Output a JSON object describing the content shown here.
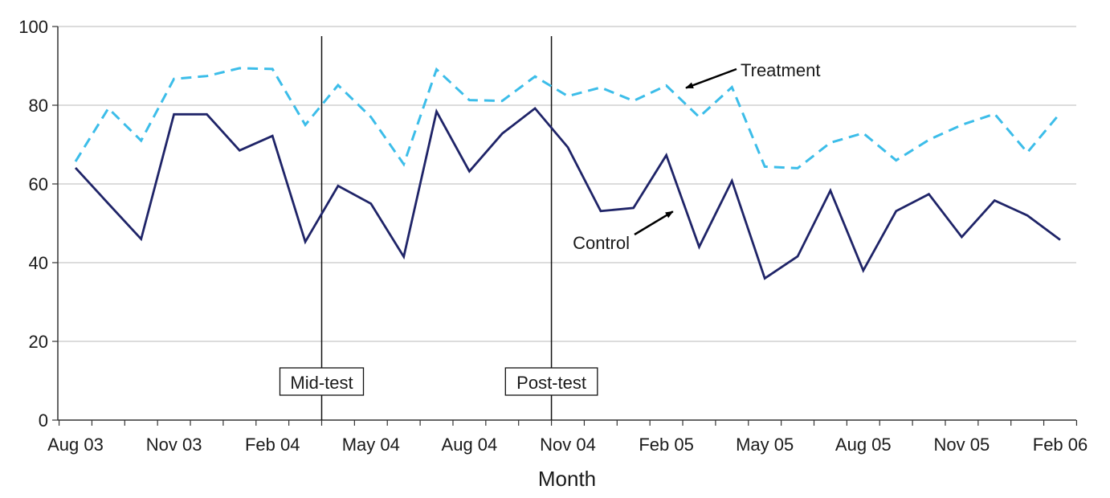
{
  "chart_data": {
    "type": "line",
    "xlabel": "Month",
    "ylabel": "",
    "ylim": [
      0,
      100
    ],
    "y_ticks": [
      0,
      20,
      40,
      60,
      80,
      100
    ],
    "grid": "horizontal",
    "x_tick_labels": [
      "Aug 03",
      "Nov 03",
      "Feb 04",
      "May 04",
      "Aug 04",
      "Nov 04",
      "Feb 05",
      "May 05",
      "Aug 05",
      "Nov 05",
      "Feb 06"
    ],
    "x_tick_label_months": [
      0,
      3,
      6,
      9,
      12,
      15,
      18,
      21,
      24,
      27,
      30
    ],
    "series": [
      {
        "name": "Treatment",
        "style": "dashed",
        "color": "#3cbde9",
        "values": [
          65.7,
          79.2,
          71.0,
          86.7,
          87.4,
          89.4,
          89.2,
          75.0,
          85.1,
          77.0,
          65.0,
          89.1,
          81.3,
          81.1,
          87.3,
          82.3,
          84.5,
          81.1,
          85.0,
          77.0,
          84.6,
          64.4,
          64.0,
          70.5,
          72.9,
          66.0,
          71.2,
          75.0,
          77.8,
          68.0,
          78.0
        ]
      },
      {
        "name": "Control",
        "style": "solid",
        "color": "#1f2468",
        "values": [
          64.1,
          55.0,
          46.0,
          77.7,
          77.7,
          68.5,
          72.2,
          45.3,
          59.5,
          55.0,
          41.5,
          78.4,
          63.2,
          72.8,
          79.2,
          69.3,
          53.1,
          53.9,
          67.3,
          44.0,
          60.8,
          36.0,
          41.6,
          58.3,
          38.0,
          53.1,
          57.4,
          46.5,
          55.8,
          52.0,
          45.8
        ]
      }
    ],
    "vertical_markers": [
      {
        "label": "Mid-test",
        "month": 7.5
      },
      {
        "label": "Post-test",
        "month": 14.5
      }
    ],
    "annotations": [
      {
        "text": "Treatment",
        "points_to_series": "Treatment",
        "month": 18.5
      },
      {
        "text": "Control",
        "points_to_series": "Control",
        "month": 18.2
      }
    ]
  }
}
